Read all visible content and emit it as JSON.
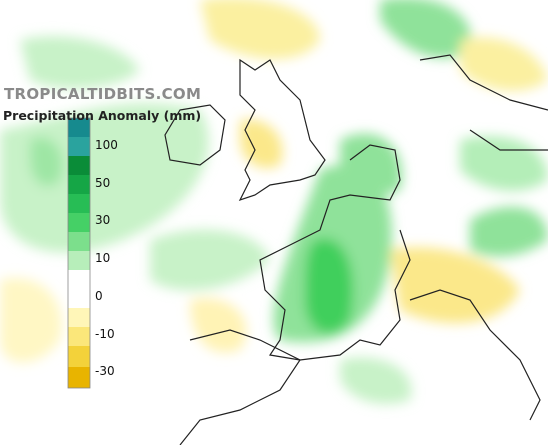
{
  "watermark": "TROPICALTIDBITS.COM",
  "legend": {
    "title": "Precipitation Anomaly (mm)",
    "ticks": [
      100,
      50,
      30,
      10,
      0,
      -10,
      -30
    ]
  }
}
